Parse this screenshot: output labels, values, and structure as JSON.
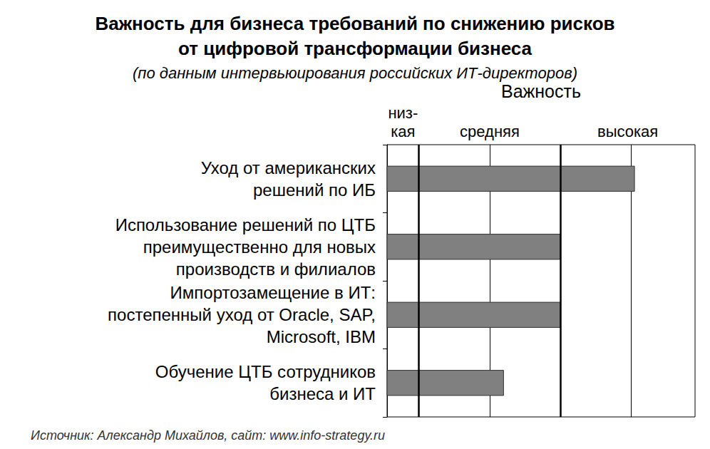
{
  "chart_data": {
    "type": "bar",
    "orientation": "horizontal",
    "title": "Важность для бизнеса требований по снижению рисков\nот цифровой трансформации бизнеса",
    "subtitle": "(по данным интервьюирования российских ИТ-директоров)",
    "x_label": "Важность",
    "source": "Источник: Александр Михайлов, сайт: www.info-strategy.ru",
    "categories": [
      "Уход от американских\nрешений по ИБ",
      "Использование решений по ЦТБ\nпреимущественно для новых\nпроизводств и филиалов",
      "Импортозамещение в ИТ:\nпостепенный уход от Oracle, SAP,\nMicrosoft, IBM",
      "Обучение ЦТБ сотрудников\nбизнеса и ИТ"
    ],
    "values": [
      4.05,
      3,
      3,
      2.2
    ],
    "color": "#808080",
    "xlim": [
      0.55,
      4.9
    ],
    "xticks": [
      1,
      2,
      3,
      4
    ],
    "grid": true,
    "tick_labels": "y",
    "importance_levels": [
      {
        "label": "низ-\nкая",
        "from": 0.55,
        "to": 1
      },
      {
        "label": "средняя",
        "from": 1,
        "to": 3
      },
      {
        "label": "высокая",
        "from": 3,
        "to": 4.9
      }
    ]
  }
}
